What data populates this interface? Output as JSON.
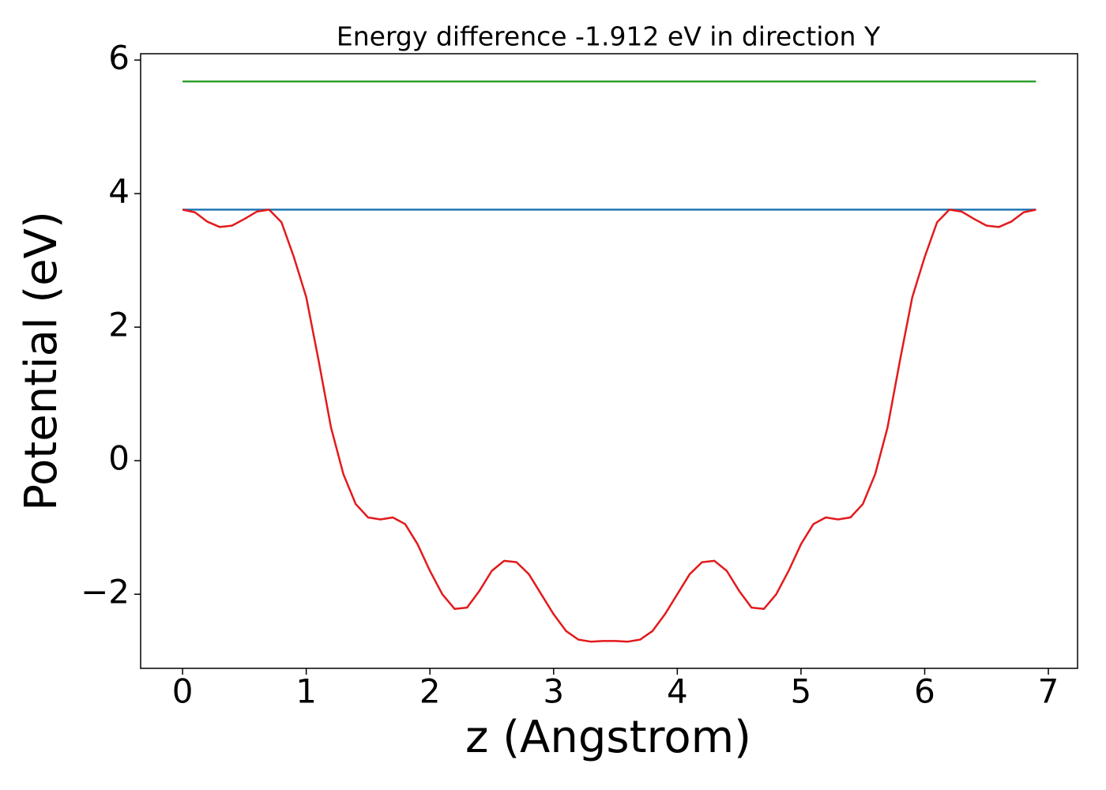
{
  "chart_data": {
    "type": "line",
    "title": "Energy difference -1.912 eV in direction Y",
    "xlabel": "z (Angstrom)",
    "ylabel": "Potential (eV)",
    "xlim": [
      -0.339,
      7.236
    ],
    "ylim": [
      -3.11,
      6.095
    ],
    "xticks": [
      0,
      1,
      2,
      3,
      4,
      5,
      6,
      7
    ],
    "yticks": [
      {
        "value": -2,
        "label": "−2"
      },
      0,
      2,
      4,
      6
    ],
    "series": [
      {
        "color": "#2ca02c",
        "x": [
          0,
          6.9
        ],
        "values": [
          5.68,
          5.68
        ]
      },
      {
        "color": "#1f77b4",
        "x": [
          0,
          6.9
        ],
        "values": [
          3.76,
          3.76
        ]
      },
      {
        "color": "#e31a1c",
        "x": [
          0,
          0.1,
          0.2,
          0.3,
          0.4,
          0.5,
          0.6,
          0.7,
          0.8,
          0.9,
          1.0,
          1.1,
          1.2,
          1.3,
          1.4,
          1.5,
          1.6,
          1.7,
          1.8,
          1.9,
          2.0,
          2.1,
          2.2,
          2.3,
          2.4,
          2.5,
          2.6,
          2.7,
          2.8,
          2.9,
          3.0,
          3.1,
          3.2,
          3.3,
          3.4,
          3.5,
          3.6,
          3.7,
          3.8,
          3.9,
          4.0,
          4.1,
          4.2,
          4.3,
          4.4,
          4.5,
          4.6,
          4.7,
          4.8,
          4.9,
          5.0,
          5.1,
          5.2,
          5.3,
          5.4,
          5.5,
          5.6,
          5.7,
          5.8,
          5.9,
          6.0,
          6.1,
          6.2,
          6.3,
          6.4,
          6.5,
          6.6,
          6.7,
          6.8,
          6.9
        ],
        "values": [
          3.76,
          3.72,
          3.58,
          3.5,
          3.52,
          3.62,
          3.73,
          3.76,
          3.57,
          3.05,
          2.45,
          1.5,
          0.5,
          -0.2,
          -0.65,
          -0.85,
          -0.88,
          -0.85,
          -0.95,
          -1.25,
          -1.65,
          -2.0,
          -2.22,
          -2.2,
          -1.95,
          -1.65,
          -1.5,
          -1.52,
          -1.7,
          -2.0,
          -2.3,
          -2.55,
          -2.68,
          -2.71,
          -2.7,
          -2.7,
          -2.71,
          -2.68,
          -2.55,
          -2.3,
          -2.0,
          -1.7,
          -1.52,
          -1.5,
          -1.65,
          -1.95,
          -2.2,
          -2.22,
          -2.0,
          -1.65,
          -1.25,
          -0.95,
          -0.85,
          -0.88,
          -0.85,
          -0.65,
          -0.2,
          0.5,
          1.5,
          2.45,
          3.05,
          3.57,
          3.76,
          3.73,
          3.62,
          3.52,
          3.5,
          3.58,
          3.72,
          3.76
        ]
      }
    ]
  }
}
